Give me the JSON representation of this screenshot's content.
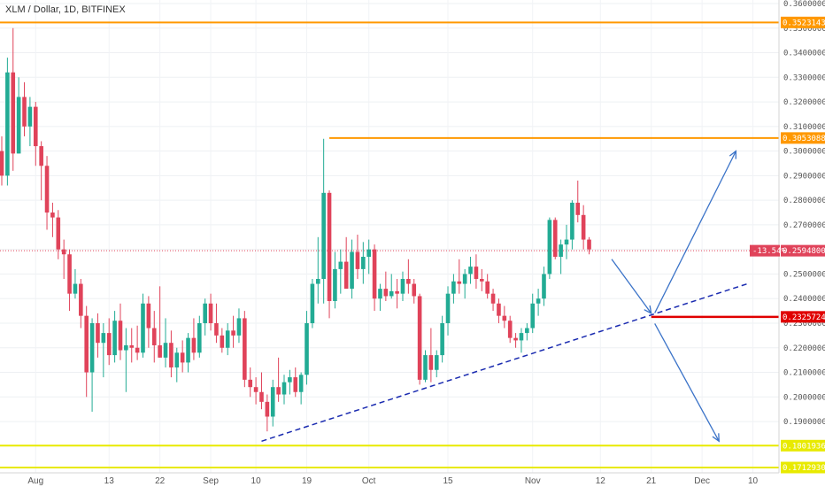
{
  "chart_data": {
    "type": "candlestick",
    "title": "XLM / Dollar, 1D, BITFINEX",
    "ylim": [
      0.17,
      0.36
    ],
    "yticks": [
      "0.36000000",
      "0.35000000",
      "0.34000000",
      "0.33000000",
      "0.32000000",
      "0.31000000",
      "0.30000000",
      "0.29000000",
      "0.28000000",
      "0.27000000",
      "0.26000000",
      "0.25000000",
      "0.24000000",
      "0.23000000",
      "0.22000000",
      "0.21000000",
      "0.20000000",
      "0.19000000"
    ],
    "xticks": [
      "Aug",
      "13",
      "22",
      "Sep",
      "10",
      "19",
      "Oct",
      "15",
      "Nov",
      "12",
      "21",
      "Dec",
      "10"
    ],
    "grid": true,
    "horizontal_levels": [
      {
        "value": 0.3523143,
        "label": "0.35231430",
        "color": "#ff9800"
      },
      {
        "value": 0.30530888,
        "label": "0.30530888",
        "color": "#ff9800"
      },
      {
        "value": 0.2325724,
        "label": "0.23257240",
        "color": "#e00000"
      },
      {
        "value": 0.18019363,
        "label": "0.18019363",
        "color": "#e8ea00"
      },
      {
        "value": 0.17129303,
        "label": "0.17129303",
        "color": "#e8ea00"
      }
    ],
    "last_price": {
      "value": 0.25948,
      "label": "0.25948000",
      "change": "-13.54%",
      "color": "#e0435a"
    },
    "trendline": {
      "from": [
        0.182,
        0.182
      ],
      "to": [
        0.246,
        0.246
      ],
      "color": "#1a2bb0",
      "style": "dashed"
    },
    "projection_arrows": {
      "color": "#3b73c8"
    },
    "colors": {
      "up": "#22ab94",
      "down": "#e0435a"
    },
    "candles": [
      [
        0.3,
        0.306,
        0.286,
        0.29
      ],
      [
        0.29,
        0.338,
        0.286,
        0.332
      ],
      [
        0.332,
        0.35,
        0.292,
        0.299
      ],
      [
        0.299,
        0.33,
        0.299,
        0.322
      ],
      [
        0.322,
        0.328,
        0.306,
        0.31
      ],
      [
        0.31,
        0.322,
        0.302,
        0.318
      ],
      [
        0.318,
        0.32,
        0.294,
        0.302
      ],
      [
        0.302,
        0.304,
        0.28,
        0.294
      ],
      [
        0.294,
        0.298,
        0.268,
        0.275
      ],
      [
        0.275,
        0.279,
        0.265,
        0.273
      ],
      [
        0.273,
        0.276,
        0.256,
        0.26
      ],
      [
        0.26,
        0.264,
        0.248,
        0.258
      ],
      [
        0.258,
        0.26,
        0.235,
        0.242
      ],
      [
        0.242,
        0.252,
        0.24,
        0.246
      ],
      [
        0.246,
        0.248,
        0.228,
        0.233
      ],
      [
        0.233,
        0.237,
        0.2,
        0.21
      ],
      [
        0.21,
        0.232,
        0.194,
        0.23
      ],
      [
        0.23,
        0.234,
        0.216,
        0.222
      ],
      [
        0.222,
        0.23,
        0.208,
        0.226
      ],
      [
        0.226,
        0.232,
        0.213,
        0.217
      ],
      [
        0.217,
        0.235,
        0.214,
        0.231
      ],
      [
        0.231,
        0.238,
        0.215,
        0.219
      ],
      [
        0.219,
        0.228,
        0.202,
        0.221
      ],
      [
        0.221,
        0.228,
        0.214,
        0.22
      ],
      [
        0.22,
        0.229,
        0.215,
        0.218
      ],
      [
        0.218,
        0.242,
        0.216,
        0.238
      ],
      [
        0.238,
        0.241,
        0.22,
        0.228
      ],
      [
        0.228,
        0.235,
        0.214,
        0.221
      ],
      [
        0.221,
        0.245,
        0.216,
        0.216
      ],
      [
        0.216,
        0.232,
        0.212,
        0.222
      ],
      [
        0.222,
        0.227,
        0.208,
        0.212
      ],
      [
        0.212,
        0.22,
        0.206,
        0.218
      ],
      [
        0.218,
        0.223,
        0.21,
        0.214
      ],
      [
        0.214,
        0.226,
        0.21,
        0.224
      ],
      [
        0.224,
        0.232,
        0.215,
        0.218
      ],
      [
        0.218,
        0.233,
        0.216,
        0.23
      ],
      [
        0.23,
        0.24,
        0.225,
        0.238
      ],
      [
        0.238,
        0.242,
        0.227,
        0.23
      ],
      [
        0.23,
        0.238,
        0.222,
        0.225
      ],
      [
        0.225,
        0.228,
        0.218,
        0.22
      ],
      [
        0.22,
        0.23,
        0.217,
        0.227
      ],
      [
        0.227,
        0.233,
        0.22,
        0.225
      ],
      [
        0.225,
        0.236,
        0.222,
        0.232
      ],
      [
        0.232,
        0.235,
        0.204,
        0.207
      ],
      [
        0.207,
        0.212,
        0.2,
        0.204
      ],
      [
        0.204,
        0.208,
        0.197,
        0.202
      ],
      [
        0.202,
        0.21,
        0.195,
        0.198
      ],
      [
        0.198,
        0.201,
        0.186,
        0.192
      ],
      [
        0.192,
        0.207,
        0.188,
        0.204
      ],
      [
        0.204,
        0.216,
        0.198,
        0.201
      ],
      [
        0.201,
        0.209,
        0.197,
        0.206
      ],
      [
        0.206,
        0.211,
        0.201,
        0.208
      ],
      [
        0.208,
        0.212,
        0.2,
        0.202
      ],
      [
        0.202,
        0.21,
        0.197,
        0.209
      ],
      [
        0.209,
        0.235,
        0.205,
        0.23
      ],
      [
        0.23,
        0.248,
        0.228,
        0.246
      ],
      [
        0.246,
        0.265,
        0.238,
        0.248
      ],
      [
        0.248,
        0.305,
        0.238,
        0.283
      ],
      [
        0.283,
        0.284,
        0.232,
        0.239
      ],
      [
        0.239,
        0.259,
        0.236,
        0.252
      ],
      [
        0.252,
        0.26,
        0.242,
        0.255
      ],
      [
        0.255,
        0.265,
        0.245,
        0.244
      ],
      [
        0.244,
        0.264,
        0.24,
        0.259
      ],
      [
        0.259,
        0.266,
        0.248,
        0.252
      ],
      [
        0.252,
        0.263,
        0.246,
        0.257
      ],
      [
        0.257,
        0.264,
        0.25,
        0.26
      ],
      [
        0.26,
        0.262,
        0.235,
        0.24
      ],
      [
        0.24,
        0.246,
        0.235,
        0.244
      ],
      [
        0.244,
        0.251,
        0.239,
        0.241
      ],
      [
        0.241,
        0.25,
        0.24,
        0.243
      ],
      [
        0.243,
        0.248,
        0.236,
        0.242
      ],
      [
        0.242,
        0.251,
        0.239,
        0.248
      ],
      [
        0.248,
        0.256,
        0.242,
        0.246
      ],
      [
        0.246,
        0.248,
        0.238,
        0.241
      ],
      [
        0.241,
        0.242,
        0.205,
        0.207
      ],
      [
        0.207,
        0.219,
        0.206,
        0.217
      ],
      [
        0.217,
        0.228,
        0.206,
        0.211
      ],
      [
        0.211,
        0.219,
        0.208,
        0.217
      ],
      [
        0.217,
        0.233,
        0.214,
        0.23
      ],
      [
        0.23,
        0.245,
        0.225,
        0.242
      ],
      [
        0.242,
        0.25,
        0.238,
        0.247
      ],
      [
        0.247,
        0.256,
        0.242,
        0.246
      ],
      [
        0.246,
        0.252,
        0.24,
        0.25
      ],
      [
        0.25,
        0.257,
        0.246,
        0.253
      ],
      [
        0.253,
        0.258,
        0.244,
        0.248
      ],
      [
        0.248,
        0.252,
        0.243,
        0.247
      ],
      [
        0.247,
        0.25,
        0.24,
        0.242
      ],
      [
        0.242,
        0.244,
        0.235,
        0.238
      ],
      [
        0.238,
        0.24,
        0.23,
        0.233
      ],
      [
        0.233,
        0.237,
        0.228,
        0.231
      ],
      [
        0.231,
        0.233,
        0.222,
        0.224
      ],
      [
        0.224,
        0.226,
        0.22,
        0.223
      ],
      [
        0.223,
        0.228,
        0.218,
        0.226
      ],
      [
        0.226,
        0.23,
        0.223,
        0.228
      ],
      [
        0.228,
        0.242,
        0.226,
        0.238
      ],
      [
        0.238,
        0.244,
        0.233,
        0.24
      ],
      [
        0.24,
        0.253,
        0.237,
        0.25
      ],
      [
        0.25,
        0.273,
        0.248,
        0.272
      ],
      [
        0.272,
        0.273,
        0.256,
        0.257
      ],
      [
        0.257,
        0.264,
        0.25,
        0.262
      ],
      [
        0.262,
        0.27,
        0.256,
        0.264
      ],
      [
        0.264,
        0.28,
        0.26,
        0.279
      ],
      [
        0.279,
        0.288,
        0.271,
        0.274
      ],
      [
        0.274,
        0.278,
        0.26,
        0.264
      ],
      [
        0.264,
        0.265,
        0.258,
        0.26
      ]
    ]
  }
}
